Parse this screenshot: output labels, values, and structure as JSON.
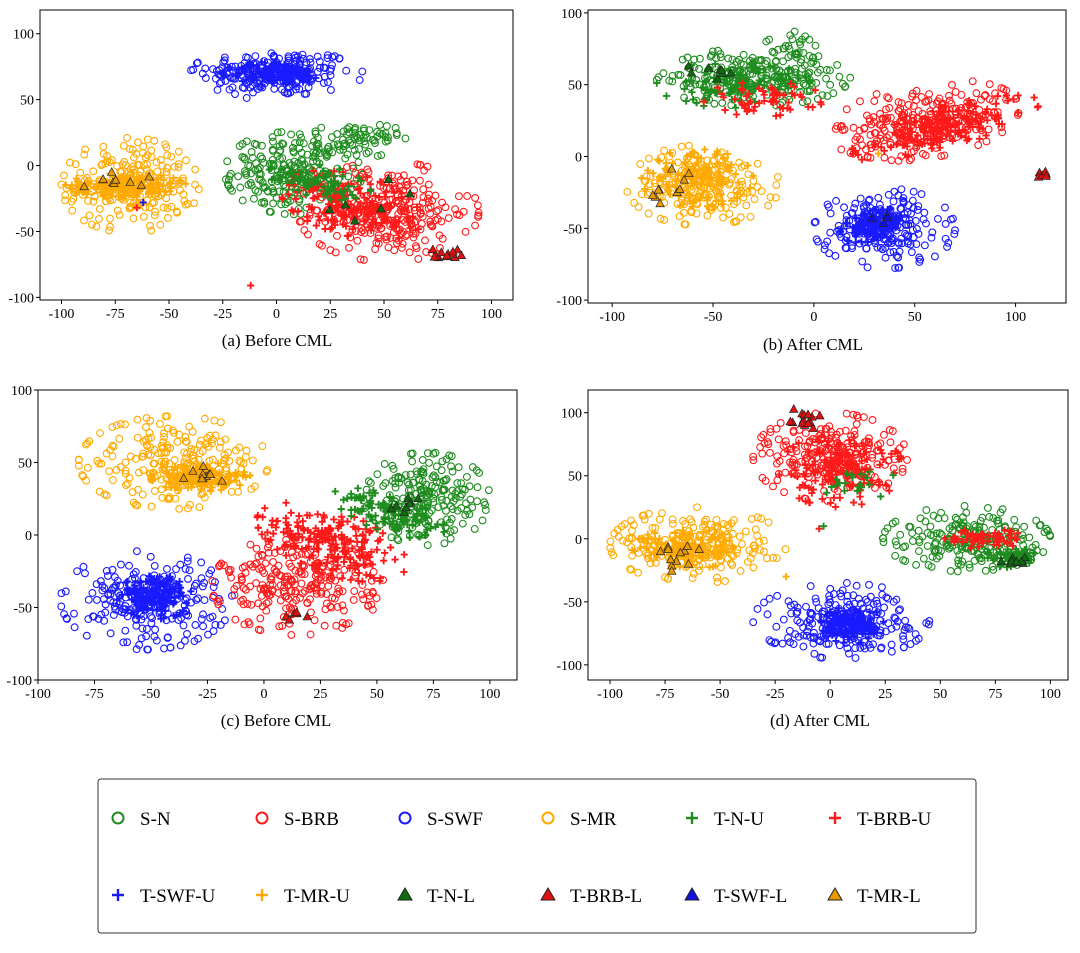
{
  "figure": {
    "captions": [
      "(a)  Before CML",
      "(b)  After CML",
      "(c)  Before CML",
      "(d)  After CML"
    ]
  },
  "legend": {
    "items": [
      {
        "label": "S-N",
        "marker": "circle",
        "color": "#1e8c1e"
      },
      {
        "label": "S-BRB",
        "marker": "circle",
        "color": "#ff1a1a"
      },
      {
        "label": "S-SWF",
        "marker": "circle",
        "color": "#1a1aff"
      },
      {
        "label": "S-MR",
        "marker": "circle",
        "color": "#ffaa00"
      },
      {
        "label": "T-N-U",
        "marker": "plus",
        "color": "#1e8c1e"
      },
      {
        "label": "T-BRB-U",
        "marker": "plus",
        "color": "#ff1a1a"
      },
      {
        "label": "T-SWF-U",
        "marker": "plus",
        "color": "#1a1aff"
      },
      {
        "label": "T-MR-U",
        "marker": "plus",
        "color": "#ffaa00"
      },
      {
        "label": "T-N-L",
        "marker": "triangle",
        "color": "#0e6b0e"
      },
      {
        "label": "T-BRB-L",
        "marker": "triangle",
        "color": "#e01010"
      },
      {
        "label": "T-SWF-L",
        "marker": "triangle",
        "color": "#1010e0"
      },
      {
        "label": "T-MR-L",
        "marker": "triangle",
        "color": "#e89a00"
      }
    ]
  },
  "chart_data": [
    {
      "type": "scatter",
      "title": "(a)  Before CML",
      "xlim": [
        -110,
        110
      ],
      "ylim": [
        -102,
        118
      ],
      "xticks": [
        -100,
        -75,
        -50,
        -25,
        0,
        25,
        50,
        75,
        100
      ],
      "yticks": [
        -100,
        -50,
        0,
        50,
        100
      ],
      "clusters": [
        {
          "series": "S-SWF",
          "cx": 0,
          "cy": 70,
          "rx": 40,
          "ry": 20,
          "n": 200
        },
        {
          "series": "T-SWF-U",
          "cx": 0,
          "cy": 70,
          "rx": 25,
          "ry": 9,
          "n": 140
        },
        {
          "series": "S-MR",
          "cx": -68,
          "cy": -15,
          "rx": 32,
          "ry": 36,
          "n": 220
        },
        {
          "series": "T-MR-U",
          "cx": -70,
          "cy": -15,
          "rx": 28,
          "ry": 9,
          "n": 140
        },
        {
          "series": "T-MR-L",
          "cx": -75,
          "cy": -10,
          "rx": 18,
          "ry": 10,
          "n": 10
        },
        {
          "series": "S-N",
          "cx": 8,
          "cy": -5,
          "rx": 32,
          "ry": 32,
          "n": 230
        },
        {
          "series": "S-N",
          "cx": 38,
          "cy": 20,
          "rx": 22,
          "ry": 14,
          "n": 60
        },
        {
          "series": "S-BRB",
          "cx": 52,
          "cy": -35,
          "rx": 42,
          "ry": 38,
          "n": 260
        },
        {
          "series": "T-BRB-U",
          "cx": 35,
          "cy": -30,
          "rx": 36,
          "ry": 22,
          "n": 200,
          "angle": -30
        },
        {
          "series": "T-N-U",
          "cx": 20,
          "cy": -12,
          "rx": 25,
          "ry": 12,
          "n": 70,
          "angle": -20
        },
        {
          "series": "T-BRB-L",
          "cx": 78,
          "cy": -68,
          "rx": 8,
          "ry": 7,
          "n": 14
        },
        {
          "series": "T-N-L",
          "cx": 45,
          "cy": -30,
          "rx": 30,
          "ry": 20,
          "n": 6
        }
      ],
      "outliers": [
        {
          "series": "T-BRB-U",
          "x": -12,
          "y": -91
        },
        {
          "series": "T-BRB-U",
          "x": -65,
          "y": -32
        },
        {
          "series": "T-SWF-U",
          "x": -62,
          "y": -28
        }
      ]
    },
    {
      "type": "scatter",
      "title": "(b)  After CML",
      "xlim": [
        -112,
        125
      ],
      "ylim": [
        -102,
        102
      ],
      "xticks": [
        -100,
        -50,
        0,
        50,
        100
      ],
      "yticks": [
        -100,
        -50,
        0,
        50,
        100
      ],
      "clusters": [
        {
          "series": "S-N",
          "cx": -30,
          "cy": 55,
          "rx": 48,
          "ry": 20,
          "n": 230
        },
        {
          "series": "S-N",
          "cx": -10,
          "cy": 75,
          "rx": 15,
          "ry": 12,
          "n": 30
        },
        {
          "series": "T-N-U",
          "cx": -40,
          "cy": 50,
          "rx": 38,
          "ry": 16,
          "n": 90
        },
        {
          "series": "T-N-L",
          "cx": -50,
          "cy": 60,
          "rx": 15,
          "ry": 6,
          "n": 8
        },
        {
          "series": "T-BRB-U",
          "cx": -25,
          "cy": 40,
          "rx": 30,
          "ry": 12,
          "n": 60
        },
        {
          "series": "S-BRB",
          "cx": 55,
          "cy": 25,
          "rx": 48,
          "ry": 26,
          "n": 240,
          "angle": 15
        },
        {
          "series": "T-BRB-U",
          "cx": 65,
          "cy": 20,
          "rx": 50,
          "ry": 14,
          "n": 180,
          "angle": 22
        },
        {
          "series": "T-BRB-L",
          "cx": 113,
          "cy": -13,
          "rx": 4,
          "ry": 3,
          "n": 6
        },
        {
          "series": "S-MR",
          "cx": -55,
          "cy": -20,
          "rx": 38,
          "ry": 28,
          "n": 200
        },
        {
          "series": "T-MR-U",
          "cx": -58,
          "cy": -15,
          "rx": 28,
          "ry": 20,
          "n": 110
        },
        {
          "series": "T-MR-L",
          "cx": -68,
          "cy": -25,
          "rx": 15,
          "ry": 20,
          "n": 10
        },
        {
          "series": "S-SWF",
          "cx": 35,
          "cy": -50,
          "rx": 35,
          "ry": 28,
          "n": 210
        },
        {
          "series": "T-SWF-U",
          "cx": 30,
          "cy": -48,
          "rx": 18,
          "ry": 10,
          "n": 140,
          "angle": 25
        },
        {
          "series": "T-SWF-L",
          "cx": 32,
          "cy": -45,
          "rx": 10,
          "ry": 5,
          "n": 4
        }
      ],
      "outliers": [
        {
          "series": "T-MR-U",
          "x": 32,
          "y": 2
        },
        {
          "series": "T-BRB-U",
          "x": 80,
          "y": 35
        }
      ]
    },
    {
      "type": "scatter",
      "title": "(c)  Before CML",
      "xlim": [
        -100,
        112
      ],
      "ylim": [
        -100,
        100
      ],
      "xticks": [
        -100,
        -75,
        -50,
        -25,
        0,
        25,
        50,
        75,
        100
      ],
      "yticks": [
        -100,
        -50,
        0,
        50,
        100
      ],
      "clusters": [
        {
          "series": "S-MR",
          "cx": -40,
          "cy": 50,
          "rx": 42,
          "ry": 32,
          "n": 220
        },
        {
          "series": "T-MR-U",
          "cx": -28,
          "cy": 40,
          "rx": 22,
          "ry": 10,
          "n": 140
        },
        {
          "series": "T-MR-L",
          "cx": -28,
          "cy": 42,
          "rx": 10,
          "ry": 15,
          "n": 10
        },
        {
          "series": "S-SWF",
          "cx": -52,
          "cy": -45,
          "rx": 38,
          "ry": 34,
          "n": 220
        },
        {
          "series": "T-SWF-U",
          "cx": -48,
          "cy": -42,
          "rx": 16,
          "ry": 16,
          "n": 150
        },
        {
          "series": "S-BRB",
          "cx": 15,
          "cy": -35,
          "rx": 38,
          "ry": 34,
          "n": 240
        },
        {
          "series": "T-BRB-U",
          "cx": 30,
          "cy": -5,
          "rx": 38,
          "ry": 20,
          "n": 220,
          "angle": -35
        },
        {
          "series": "T-BRB-L",
          "cx": 14,
          "cy": -55,
          "rx": 6,
          "ry": 4,
          "n": 6
        },
        {
          "series": "S-N",
          "cx": 72,
          "cy": 25,
          "rx": 28,
          "ry": 32,
          "n": 200
        },
        {
          "series": "T-N-U",
          "cx": 55,
          "cy": 15,
          "rx": 28,
          "ry": 12,
          "n": 110,
          "angle": -30
        },
        {
          "series": "T-N-L",
          "cx": 62,
          "cy": 22,
          "rx": 10,
          "ry": 8,
          "n": 8
        }
      ],
      "outliers": []
    },
    {
      "type": "scatter",
      "title": "(d)  After CML",
      "xlim": [
        -110,
        108
      ],
      "ylim": [
        -112,
        118
      ],
      "xticks": [
        -100,
        -75,
        -50,
        -25,
        0,
        25,
        50,
        75,
        100
      ],
      "yticks": [
        -100,
        -50,
        0,
        50,
        100
      ],
      "clusters": [
        {
          "series": "S-BRB",
          "cx": 0,
          "cy": 65,
          "rx": 35,
          "ry": 35,
          "n": 220
        },
        {
          "series": "T-BRB-U",
          "cx": 5,
          "cy": 55,
          "rx": 28,
          "ry": 30,
          "n": 150,
          "angle": -20
        },
        {
          "series": "T-BRB-L",
          "cx": -12,
          "cy": 95,
          "rx": 10,
          "ry": 10,
          "n": 14
        },
        {
          "series": "T-N-U",
          "cx": 10,
          "cy": 45,
          "rx": 20,
          "ry": 15,
          "n": 20
        },
        {
          "series": "S-MR",
          "cx": -60,
          "cy": -5,
          "rx": 40,
          "ry": 30,
          "n": 220
        },
        {
          "series": "T-MR-U",
          "cx": -65,
          "cy": -8,
          "rx": 25,
          "ry": 16,
          "n": 110
        },
        {
          "series": "T-MR-L",
          "cx": -70,
          "cy": -15,
          "rx": 15,
          "ry": 15,
          "n": 12
        },
        {
          "series": "S-N",
          "cx": 62,
          "cy": 0,
          "rx": 38,
          "ry": 26,
          "n": 220
        },
        {
          "series": "T-N-U",
          "cx": 82,
          "cy": -15,
          "rx": 12,
          "ry": 8,
          "n": 70
        },
        {
          "series": "T-N-L",
          "cx": 85,
          "cy": -18,
          "rx": 8,
          "ry": 5,
          "n": 10
        },
        {
          "series": "T-BRB-U",
          "cx": 70,
          "cy": 0,
          "rx": 18,
          "ry": 8,
          "n": 60
        },
        {
          "series": "S-SWF",
          "cx": 5,
          "cy": -65,
          "rx": 40,
          "ry": 30,
          "n": 220
        },
        {
          "series": "T-SWF-U",
          "cx": 10,
          "cy": -68,
          "rx": 15,
          "ry": 15,
          "n": 150
        }
      ],
      "outliers": [
        {
          "series": "T-BRB-U",
          "x": -5,
          "y": 8
        },
        {
          "series": "T-N-U",
          "x": -3,
          "y": 10
        },
        {
          "series": "T-MR-U",
          "x": -20,
          "y": -30
        }
      ]
    }
  ]
}
